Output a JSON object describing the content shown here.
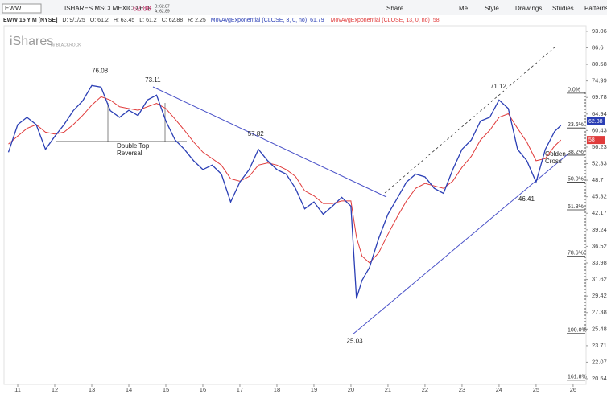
{
  "toolbar": {
    "symbol": "EWW",
    "description": "ISHARES MSCI MEXICO ETF",
    "bid": "B: 62.87",
    "ask": "A: 62.89",
    "buttons": [
      "Share",
      "Me",
      "Style",
      "Drawings",
      "Studies",
      "Patterns"
    ]
  },
  "study_bar": [
    "EWW 15 Y M [NYSE]",
    "D: 9/1/25",
    "O: 61.2",
    "H: 63.45",
    "L: 61.2",
    "C: 62.88",
    "R: 2.25"
  ],
  "logo": {
    "brand": "iShares",
    "by": "by BLACKROCK"
  },
  "chart_data": {
    "type": "line",
    "log_scale": true,
    "grid": false,
    "last_price": 62.88,
    "x": [
      10.75,
      11.0,
      11.25,
      11.5,
      11.75,
      12.0,
      12.25,
      12.5,
      12.75,
      13.0,
      13.25,
      13.5,
      13.75,
      14.0,
      14.25,
      14.5,
      14.75,
      15.0,
      15.25,
      15.5,
      15.75,
      16.0,
      16.25,
      16.5,
      16.75,
      17.0,
      17.25,
      17.5,
      17.75,
      18.0,
      18.25,
      18.5,
      18.75,
      19.0,
      19.25,
      19.5,
      19.75,
      20.0,
      20.15,
      20.3,
      20.5,
      20.75,
      21.0,
      21.25,
      21.5,
      21.75,
      22.0,
      22.25,
      22.5,
      22.75,
      23.0,
      23.25,
      23.5,
      23.75,
      24.0,
      24.25,
      24.5,
      24.75,
      25.0,
      25.25,
      25.5,
      25.67
    ],
    "series": [
      {
        "name": "MovAvgExponential (CLOSE, 3, 0, no)",
        "color": "#2b3fb5",
        "values": [
          55,
          62,
          64,
          62,
          55.7,
          58.9,
          62,
          65.9,
          68.7,
          73.5,
          73,
          65.9,
          64,
          66,
          64.5,
          69,
          70.5,
          63,
          58,
          55.7,
          53,
          51,
          52,
          50,
          44.3,
          48.3,
          51,
          55.7,
          53,
          51,
          50,
          47,
          43,
          44.3,
          42,
          43.5,
          45.2,
          43.5,
          29.1,
          31.5,
          33.3,
          37.8,
          42,
          45,
          48.3,
          50,
          49.4,
          47,
          46,
          51,
          55.7,
          58,
          63,
          64,
          69,
          66.5,
          55.7,
          53,
          48.3,
          55.7,
          60.2,
          61.79
        ]
      },
      {
        "name": "MovAvgExponential (CLOSE, 13, 0, no)",
        "color": "#e03b3b",
        "values": [
          57,
          59,
          61,
          62,
          60,
          59.5,
          60,
          62,
          64.5,
          67.5,
          70,
          69,
          67,
          66.5,
          66,
          67,
          68,
          66.5,
          63.5,
          60.5,
          57.5,
          55,
          53.5,
          52,
          49,
          48.5,
          49.5,
          52,
          52.5,
          52,
          51,
          49.5,
          46.5,
          45.5,
          44,
          44,
          44.5,
          44.5,
          38,
          35,
          34,
          35.5,
          38.5,
          41.5,
          44.5,
          47,
          48,
          47.5,
          47,
          48.5,
          51.5,
          54,
          58,
          60.5,
          64,
          65,
          61,
          57.5,
          53,
          53.5,
          56.5,
          58
        ]
      }
    ],
    "xlim": [
      10.63,
      26.35
    ],
    "xticks": [
      11,
      12,
      13,
      14,
      15,
      16,
      17,
      18,
      19,
      20,
      21,
      22,
      23,
      24,
      25,
      26
    ],
    "ylim": [
      19.9,
      96
    ],
    "yticks": [
      93.06,
      86.6,
      80.58,
      74.99,
      69.78,
      64.94,
      60.43,
      56.23,
      52.33,
      48.7,
      45.32,
      42.17,
      39.24,
      36.52,
      33.98,
      31.62,
      29.42,
      27.38,
      25.48,
      23.71,
      22.07,
      20.54
    ],
    "price_labels": [
      {
        "x": 13.22,
        "value": 76.08,
        "anchor": "above"
      },
      {
        "x": 14.65,
        "value": 73.11,
        "anchor": "above"
      },
      {
        "x": 17.43,
        "value": 57.82,
        "anchor": "above"
      },
      {
        "x": 20.1,
        "value": 25.03,
        "anchor": "below"
      },
      {
        "x": 23.98,
        "value": 71.12,
        "anchor": "above"
      },
      {
        "x": 24.74,
        "value": 46.41,
        "anchor": "below"
      }
    ],
    "fib_levels": [
      {
        "label": "0.0%",
        "value": 71.1
      },
      {
        "label": "23.6%",
        "value": 61.1
      },
      {
        "label": "38.2%",
        "value": 54.3
      },
      {
        "label": "50.0%",
        "value": 48.3
      },
      {
        "label": "61.8%",
        "value": 42.8
      },
      {
        "label": "78.6%",
        "value": 35.0
      },
      {
        "label": "100.0%",
        "value": 25.0
      },
      {
        "label": "161.8%",
        "value": 20.4
      }
    ],
    "notes": [
      {
        "lines": [
          "Double Top",
          "Reversal"
        ]
      },
      {
        "lines": [
          "Golden",
          "Cross"
        ]
      }
    ]
  }
}
